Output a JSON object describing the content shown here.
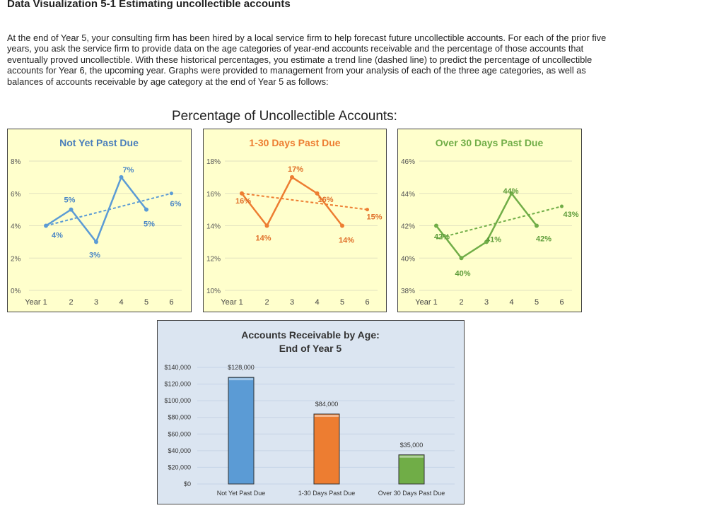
{
  "page": {
    "title": "Data Visualization 5-1 Estimating uncollectible accounts",
    "intro": "At the end of Year 5, your consulting firm has been hired by a local service firm to help forecast future uncollectible accounts. For each of the prior five years, you ask the service firm to provide data on the age categories of year-end accounts receivable and the percentage of those accounts that eventually proved uncollectible. With these historical percentages, you estimate a trend line (dashed line) to predict the percentage of uncollectible accounts for Year 6, the upcoming year. Graphs were provided to management from your analysis of each of the three age categories, as well as balances of accounts receivable by age category at the end of Year 5 as follows:",
    "main_title": "Percentage of Uncollectible Accounts:"
  },
  "chart_data": [
    {
      "type": "line",
      "title": "Not Yet Past Due",
      "color": "#5b9bd5",
      "x_labels": [
        "Year 1",
        "2",
        "3",
        "4",
        "5",
        "6"
      ],
      "actual": {
        "x": [
          1,
          2,
          3,
          4,
          5
        ],
        "y": [
          4,
          5,
          3,
          7,
          5
        ]
      },
      "trend": {
        "x": [
          1,
          2,
          3,
          4,
          5,
          6
        ],
        "y": [
          4,
          4.4,
          4.8,
          5.2,
          5.6,
          6
        ]
      },
      "data_labels": [
        "4%",
        "5%",
        "3%",
        "7%",
        "5%",
        "6%"
      ],
      "ylim": [
        0,
        8
      ],
      "y_ticks": [
        0,
        2,
        4,
        6,
        8
      ],
      "y_tick_labels": [
        "0%",
        "2%",
        "4%",
        "6%",
        "8%"
      ]
    },
    {
      "type": "line",
      "title": "1-30 Days Past Due",
      "color": "#ed7d31",
      "x_labels": [
        "Year 1",
        "2",
        "3",
        "4",
        "5",
        "6"
      ],
      "actual": {
        "x": [
          1,
          2,
          3,
          4,
          5
        ],
        "y": [
          16,
          14,
          17,
          16,
          14
        ]
      },
      "trend": {
        "x": [
          1,
          2,
          3,
          4,
          5,
          6
        ],
        "y": [
          16,
          15.8,
          15.6,
          15.4,
          15.2,
          15
        ]
      },
      "data_labels": [
        "16%",
        "14%",
        "17%",
        "16%",
        "14%",
        "15%"
      ],
      "ylim": [
        10,
        18
      ],
      "y_ticks": [
        10,
        12,
        14,
        16,
        18
      ],
      "y_tick_labels": [
        "10%",
        "12%",
        "14%",
        "16%",
        "18%"
      ]
    },
    {
      "type": "line",
      "title": "Over 30 Days Past Due",
      "color": "#70ad47",
      "x_labels": [
        "Year 1",
        "2",
        "3",
        "4",
        "5",
        "6"
      ],
      "actual": {
        "x": [
          1,
          2,
          3,
          4,
          5
        ],
        "y": [
          42,
          40,
          41,
          44,
          42
        ]
      },
      "trend": {
        "x": [
          1,
          2,
          3,
          4,
          5,
          6
        ],
        "y": [
          41.2,
          41.6,
          42,
          42.4,
          42.8,
          43.2
        ]
      },
      "data_labels": [
        "42%",
        "40%",
        "41%",
        "44%",
        "42%",
        "43%"
      ],
      "ylim": [
        38,
        46
      ],
      "y_ticks": [
        38,
        40,
        42,
        44,
        46
      ],
      "y_tick_labels": [
        "38%",
        "40%",
        "42%",
        "44%",
        "46%"
      ]
    },
    {
      "type": "bar",
      "title": "Accounts Receivable by Age:",
      "subtitle": "End of Year 5",
      "categories": [
        "Not Yet Past Due",
        "1-30 Days Past Due",
        "Over 30 Days Past Due"
      ],
      "values": [
        128000,
        84000,
        35000
      ],
      "value_labels": [
        "$128,000",
        "$84,000",
        "$35,000"
      ],
      "colors": [
        "#5b9bd5",
        "#ed7d31",
        "#70ad47"
      ],
      "ylim": [
        0,
        140000
      ],
      "y_ticks": [
        0,
        20000,
        40000,
        60000,
        80000,
        100000,
        120000,
        140000
      ],
      "y_tick_labels": [
        "$0",
        "$20,000",
        "$40,000",
        "$60,000",
        "$80,000",
        "$100,000",
        "$120,000",
        "$140,000"
      ]
    }
  ]
}
